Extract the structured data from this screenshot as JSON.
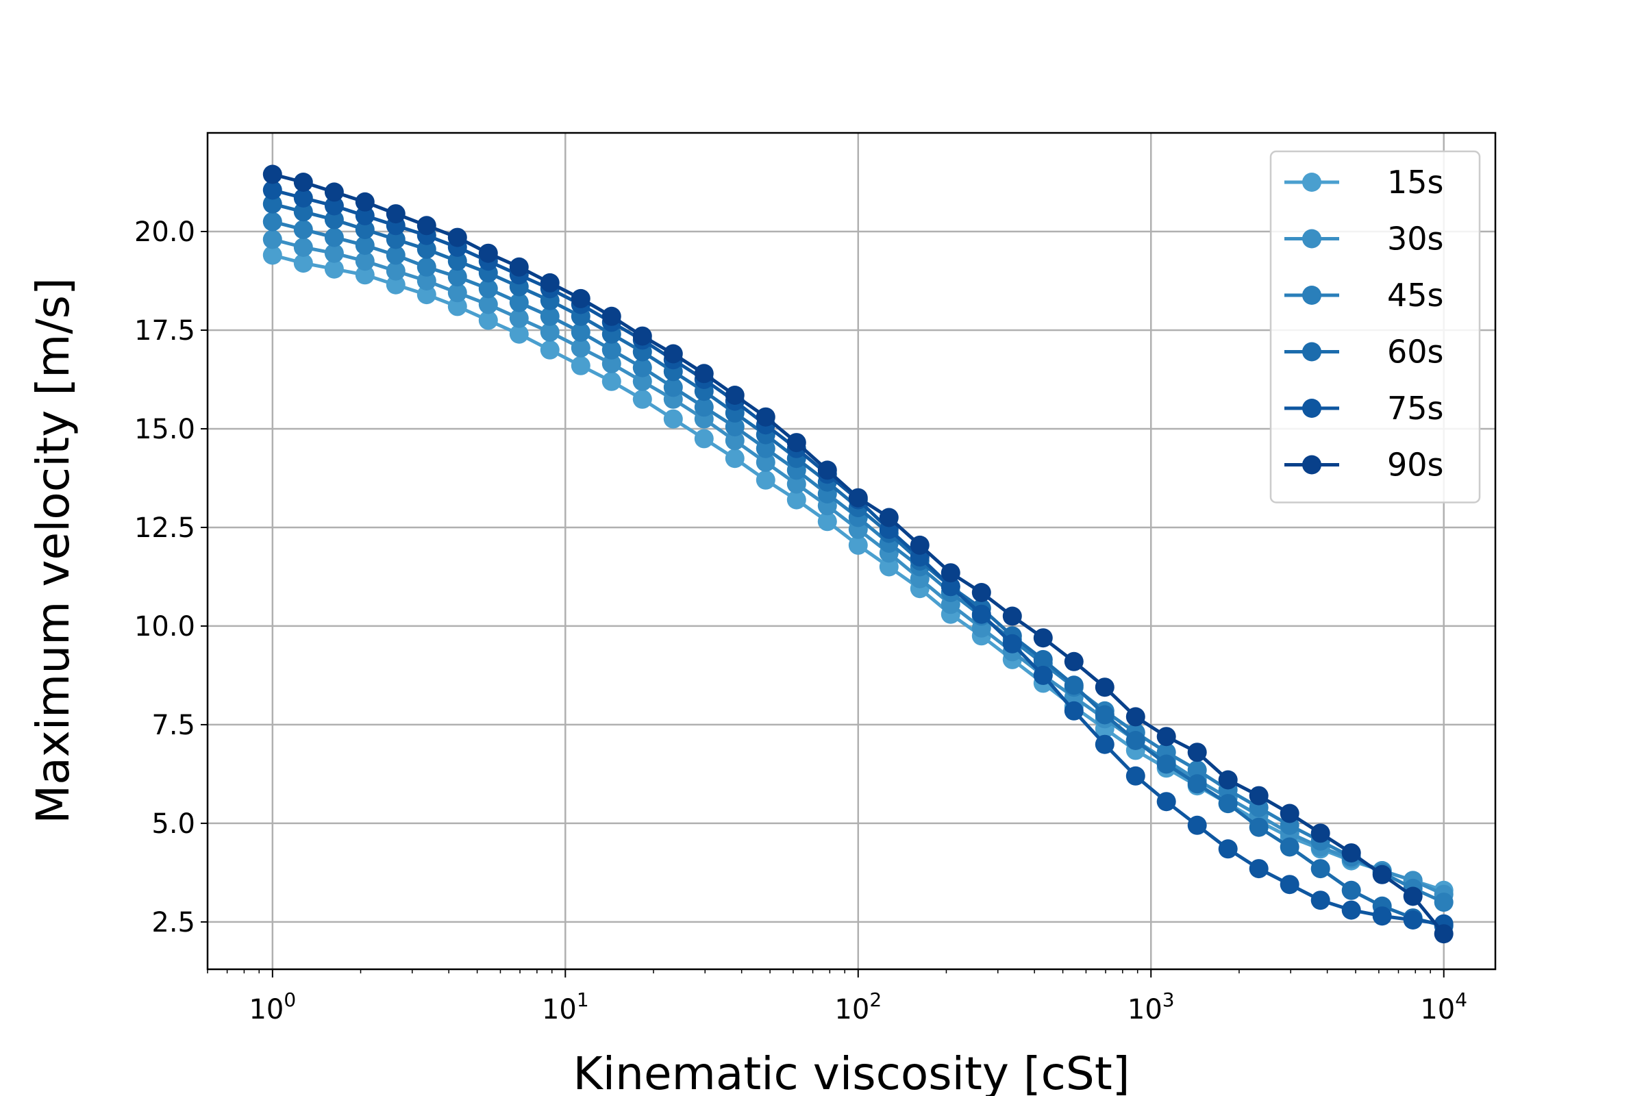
{
  "chart_data": {
    "type": "line",
    "xlabel": "Kinematic viscosity [cSt]",
    "ylabel": "Maximum velocity [m/s]",
    "xscale": "log",
    "xlim": [
      0.6,
      15000
    ],
    "ylim": [
      1.3,
      22.5
    ],
    "grid": true,
    "legend_position": "top-right",
    "x_ticks": [
      {
        "value": 1,
        "base": "10",
        "exp": "0"
      },
      {
        "value": 10,
        "base": "10",
        "exp": "1"
      },
      {
        "value": 100,
        "base": "10",
        "exp": "2"
      },
      {
        "value": 1000,
        "base": "10",
        "exp": "3"
      },
      {
        "value": 10000,
        "base": "10",
        "exp": "4"
      }
    ],
    "y_ticks": [
      "2.5",
      "5.0",
      "7.5",
      "10.0",
      "12.5",
      "15.0",
      "17.5",
      "20.0"
    ],
    "x": [
      1,
      1.274,
      1.624,
      2.069,
      2.637,
      3.36,
      4.281,
      5.456,
      6.952,
      8.859,
      11.288,
      14.384,
      18.33,
      23.357,
      29.764,
      37.927,
      48.329,
      61.585,
      78.476,
      100,
      127.43,
      162.38,
      206.91,
      263.67,
      335.98,
      428.13,
      545.56,
      695.19,
      885.87,
      1128.8,
      1438.4,
      1833,
      2335.7,
      2976.4,
      3792.7,
      4832.9,
      6158.5,
      7847.6,
      10000
    ],
    "series": [
      {
        "name": "15s",
        "color": "#4a9fcf",
        "values": [
          19.4,
          19.2,
          19.05,
          18.9,
          18.65,
          18.4,
          18.1,
          17.75,
          17.4,
          17.0,
          16.6,
          16.2,
          15.75,
          15.25,
          14.75,
          14.25,
          13.7,
          13.2,
          12.65,
          12.05,
          11.5,
          10.95,
          10.3,
          9.75,
          9.15,
          8.55,
          7.95,
          7.4,
          6.85,
          6.4,
          5.95,
          5.5,
          5.05,
          4.65,
          4.35,
          4.05,
          3.8,
          3.55,
          3.3
        ]
      },
      {
        "name": "30s",
        "color": "#3a8fc4",
        "values": [
          19.8,
          19.6,
          19.45,
          19.25,
          19.0,
          18.75,
          18.45,
          18.15,
          17.8,
          17.45,
          17.05,
          16.65,
          16.2,
          15.75,
          15.25,
          14.7,
          14.15,
          13.6,
          13.05,
          12.45,
          11.85,
          11.2,
          10.55,
          9.95,
          9.35,
          8.75,
          8.2,
          7.65,
          7.1,
          6.6,
          6.1,
          5.65,
          5.2,
          4.75,
          4.4,
          4.1,
          3.8,
          3.55,
          3.2
        ]
      },
      {
        "name": "45s",
        "color": "#2a7fba",
        "values": [
          20.25,
          20.05,
          19.85,
          19.65,
          19.4,
          19.1,
          18.85,
          18.55,
          18.2,
          17.85,
          17.45,
          17.0,
          16.55,
          16.05,
          15.55,
          15.05,
          14.5,
          13.95,
          13.35,
          12.75,
          12.1,
          11.5,
          10.85,
          10.25,
          9.65,
          9.05,
          8.45,
          7.85,
          7.3,
          6.8,
          6.35,
          5.85,
          5.4,
          4.95,
          4.55,
          4.15,
          3.75,
          3.35,
          3.0
        ]
      },
      {
        "name": "60s",
        "color": "#1b6cad",
        "values": [
          20.7,
          20.5,
          20.3,
          20.05,
          19.8,
          19.55,
          19.25,
          18.95,
          18.6,
          18.25,
          17.85,
          17.4,
          16.95,
          16.45,
          15.95,
          15.4,
          14.85,
          14.25,
          13.65,
          13.0,
          12.35,
          11.65,
          11.0,
          10.45,
          9.75,
          9.15,
          8.5,
          7.75,
          7.1,
          6.5,
          6.0,
          5.5,
          4.9,
          4.4,
          3.85,
          3.3,
          2.9,
          2.6,
          2.4
        ]
      },
      {
        "name": "75s",
        "color": "#0e56a0",
        "values": [
          21.05,
          20.85,
          20.65,
          20.4,
          20.15,
          19.9,
          19.6,
          19.25,
          18.9,
          18.55,
          18.15,
          17.7,
          17.25,
          16.75,
          16.25,
          15.7,
          15.1,
          14.5,
          13.85,
          13.2,
          12.45,
          11.75,
          11.0,
          10.3,
          9.55,
          8.75,
          7.85,
          7.0,
          6.2,
          5.55,
          4.95,
          4.35,
          3.85,
          3.45,
          3.05,
          2.8,
          2.65,
          2.55,
          2.45
        ]
      },
      {
        "name": "90s",
        "color": "#08408a",
        "values": [
          21.45,
          21.25,
          21.0,
          20.75,
          20.45,
          20.15,
          19.85,
          19.45,
          19.1,
          18.7,
          18.3,
          17.85,
          17.35,
          16.9,
          16.4,
          15.85,
          15.3,
          14.65,
          13.95,
          13.25,
          12.75,
          12.05,
          11.35,
          10.85,
          10.25,
          9.7,
          9.1,
          8.45,
          7.7,
          7.2,
          6.8,
          6.1,
          5.7,
          5.25,
          4.75,
          4.25,
          3.7,
          3.15,
          2.2
        ]
      }
    ]
  }
}
